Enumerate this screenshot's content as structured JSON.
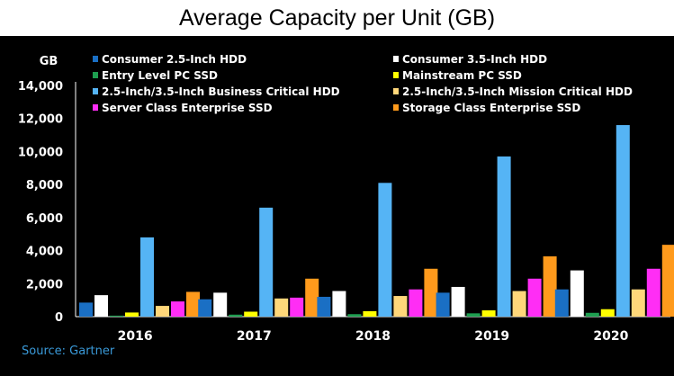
{
  "chart_data": {
    "type": "bar",
    "title": "Average Capacity per Unit (GB)",
    "ylabel": "GB",
    "xlabel": "",
    "ylim": [
      0,
      14000
    ],
    "yticks": [
      0,
      2000,
      4000,
      6000,
      8000,
      10000,
      12000,
      14000
    ],
    "ytick_labels": [
      "0",
      "2,000",
      "4,000",
      "6,000",
      "8,000",
      "10,000",
      "12,000",
      "14,000"
    ],
    "categories": [
      "2016",
      "2017",
      "2018",
      "2019",
      "2020"
    ],
    "legend_position": "top",
    "series": [
      {
        "name": "Consumer 2.5-Inch HDD",
        "color": "#1a6fc4",
        "values": [
          850,
          1050,
          1200,
          1450,
          1650
        ]
      },
      {
        "name": "Consumer 3.5-Inch HDD",
        "color": "#ffffff",
        "values": [
          1300,
          1450,
          1550,
          1800,
          2800
        ]
      },
      {
        "name": "Entry Level PC SSD",
        "color": "#1e9e50",
        "values": [
          60,
          120,
          150,
          200,
          230
        ]
      },
      {
        "name": "Mainstream PC SSD",
        "color": "#ffff00",
        "values": [
          250,
          300,
          330,
          380,
          450
        ]
      },
      {
        "name": "2.5-Inch/3.5-Inch Business Critical HDD",
        "color": "#55b4f5",
        "values": [
          4800,
          6600,
          8100,
          9700,
          11600
        ]
      },
      {
        "name": "2.5-Inch/3.5-Inch Mission Critical HDD",
        "color": "#ffd77a",
        "values": [
          650,
          1100,
          1250,
          1550,
          1650
        ]
      },
      {
        "name": "Server Class Enterprise SSD",
        "color": "#ff2df5",
        "values": [
          920,
          1150,
          1650,
          2300,
          2900
        ]
      },
      {
        "name": "Storage Class Enterprise SSD",
        "color": "#ff9a1c",
        "values": [
          1500,
          2300,
          2900,
          3650,
          4350
        ]
      }
    ]
  },
  "source": "Source: Gartner"
}
